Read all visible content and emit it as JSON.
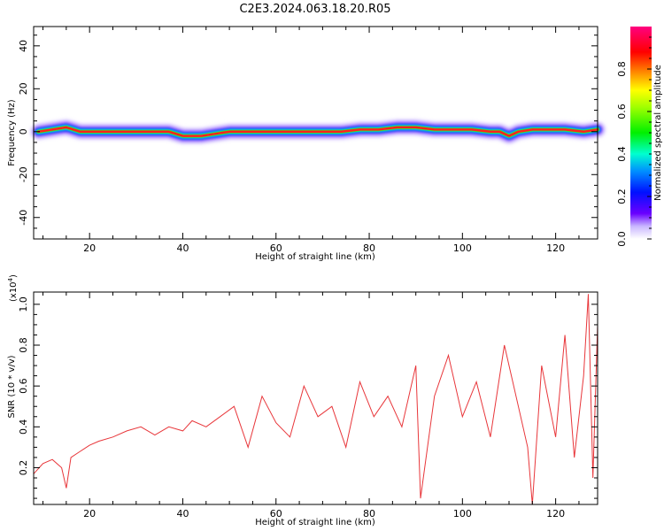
{
  "title": "C2E3.2024.063.18.20.R05",
  "chart_data": [
    {
      "type": "heatmap",
      "xlabel": "Height of straight line (km)",
      "ylabel": "Frequency (Hz)",
      "xlim": [
        8,
        129
      ],
      "ylim": [
        -50,
        49
      ],
      "xticks": [
        20,
        40,
        60,
        80,
        100,
        120
      ],
      "yticks": [
        40,
        20,
        0,
        -20,
        -40
      ],
      "colorbar": {
        "label": "Normalized spectral amplitude",
        "range": [
          0.0,
          1.0
        ],
        "ticks": [
          0.0,
          0.2,
          0.4,
          0.6,
          0.8
        ],
        "tick_labels": [
          "0.0",
          "0.2",
          "0.4",
          "0.6",
          "0.8"
        ]
      },
      "ridge": {
        "x": [
          9,
          12,
          15,
          18,
          22,
          26,
          30,
          34,
          37,
          40,
          44,
          47,
          50,
          54,
          58,
          62,
          66,
          70,
          74,
          78,
          82,
          86,
          90,
          94,
          98,
          102,
          106,
          108,
          110,
          112,
          115,
          118,
          122,
          126,
          129
        ],
        "freq": [
          0,
          1,
          2,
          0,
          0,
          0,
          0,
          0,
          0,
          -2,
          -2,
          -1,
          0,
          0,
          0,
          0,
          0,
          0,
          0,
          1,
          1,
          2,
          2,
          1,
          1,
          1,
          0,
          0,
          -2,
          0,
          1,
          1,
          1,
          0,
          1
        ]
      }
    },
    {
      "type": "line",
      "xlabel": "Height of straight line (km)",
      "ylabel": "SNR (10 * v/v)",
      "yscale_note": "(x10",
      "yscale_exp": "4",
      "yscale_close": ")",
      "xlim": [
        8,
        129
      ],
      "ylim": [
        0.02,
        1.06
      ],
      "xticks": [
        20,
        40,
        60,
        80,
        100,
        120
      ],
      "yticks": [
        0.2,
        0.4,
        0.6,
        0.8,
        1.0
      ],
      "ytick_labels": [
        "0.2",
        "0.4",
        "0.6",
        "0.8",
        "1.0"
      ],
      "color": "#e8363a",
      "x": [
        8,
        10,
        12,
        14,
        15,
        16,
        18,
        20,
        22,
        25,
        28,
        31,
        34,
        37,
        40,
        42,
        45,
        48,
        51,
        54,
        57,
        60,
        63,
        66,
        69,
        72,
        75,
        78,
        81,
        84,
        87,
        90,
        91,
        94,
        97,
        100,
        103,
        106,
        109,
        112,
        114,
        115,
        117,
        120,
        122,
        124,
        126,
        127,
        128,
        129
      ],
      "y": [
        0.17,
        0.22,
        0.24,
        0.2,
        0.1,
        0.25,
        0.28,
        0.31,
        0.33,
        0.35,
        0.38,
        0.4,
        0.36,
        0.4,
        0.38,
        0.43,
        0.4,
        0.45,
        0.5,
        0.3,
        0.55,
        0.42,
        0.35,
        0.6,
        0.45,
        0.5,
        0.3,
        0.62,
        0.45,
        0.55,
        0.4,
        0.7,
        0.05,
        0.55,
        0.75,
        0.45,
        0.62,
        0.35,
        0.8,
        0.5,
        0.3,
        0.02,
        0.7,
        0.35,
        0.85,
        0.25,
        0.65,
        1.05,
        0.15,
        0.9
      ]
    }
  ]
}
